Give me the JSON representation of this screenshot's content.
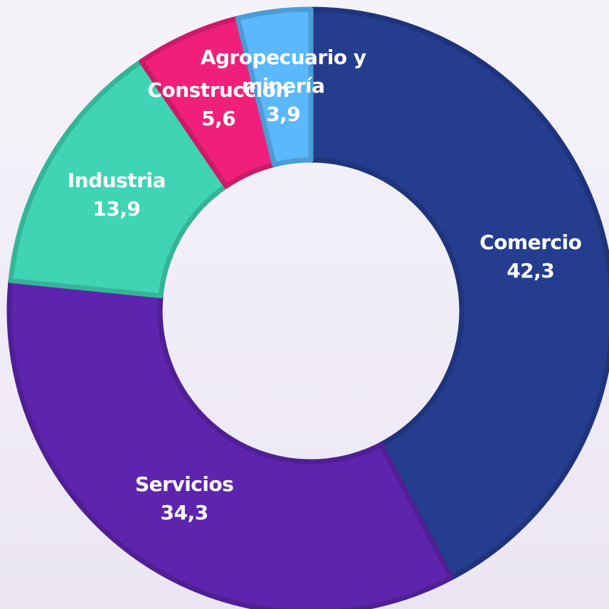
{
  "chart_data": {
    "type": "donut",
    "categories": [
      "Comercio",
      "Servicios",
      "Industria",
      "Construcción",
      "Agropecuario y minería"
    ],
    "values": [
      42.3,
      34.3,
      13.9,
      5.6,
      3.9
    ],
    "value_labels": [
      "42,3",
      "34,3",
      "13,9",
      "5,6",
      "3,9"
    ],
    "colors": [
      "#253d8f",
      "#5e24ad",
      "#3fd4b4",
      "#f0207a",
      "#5ab8fb"
    ]
  }
}
